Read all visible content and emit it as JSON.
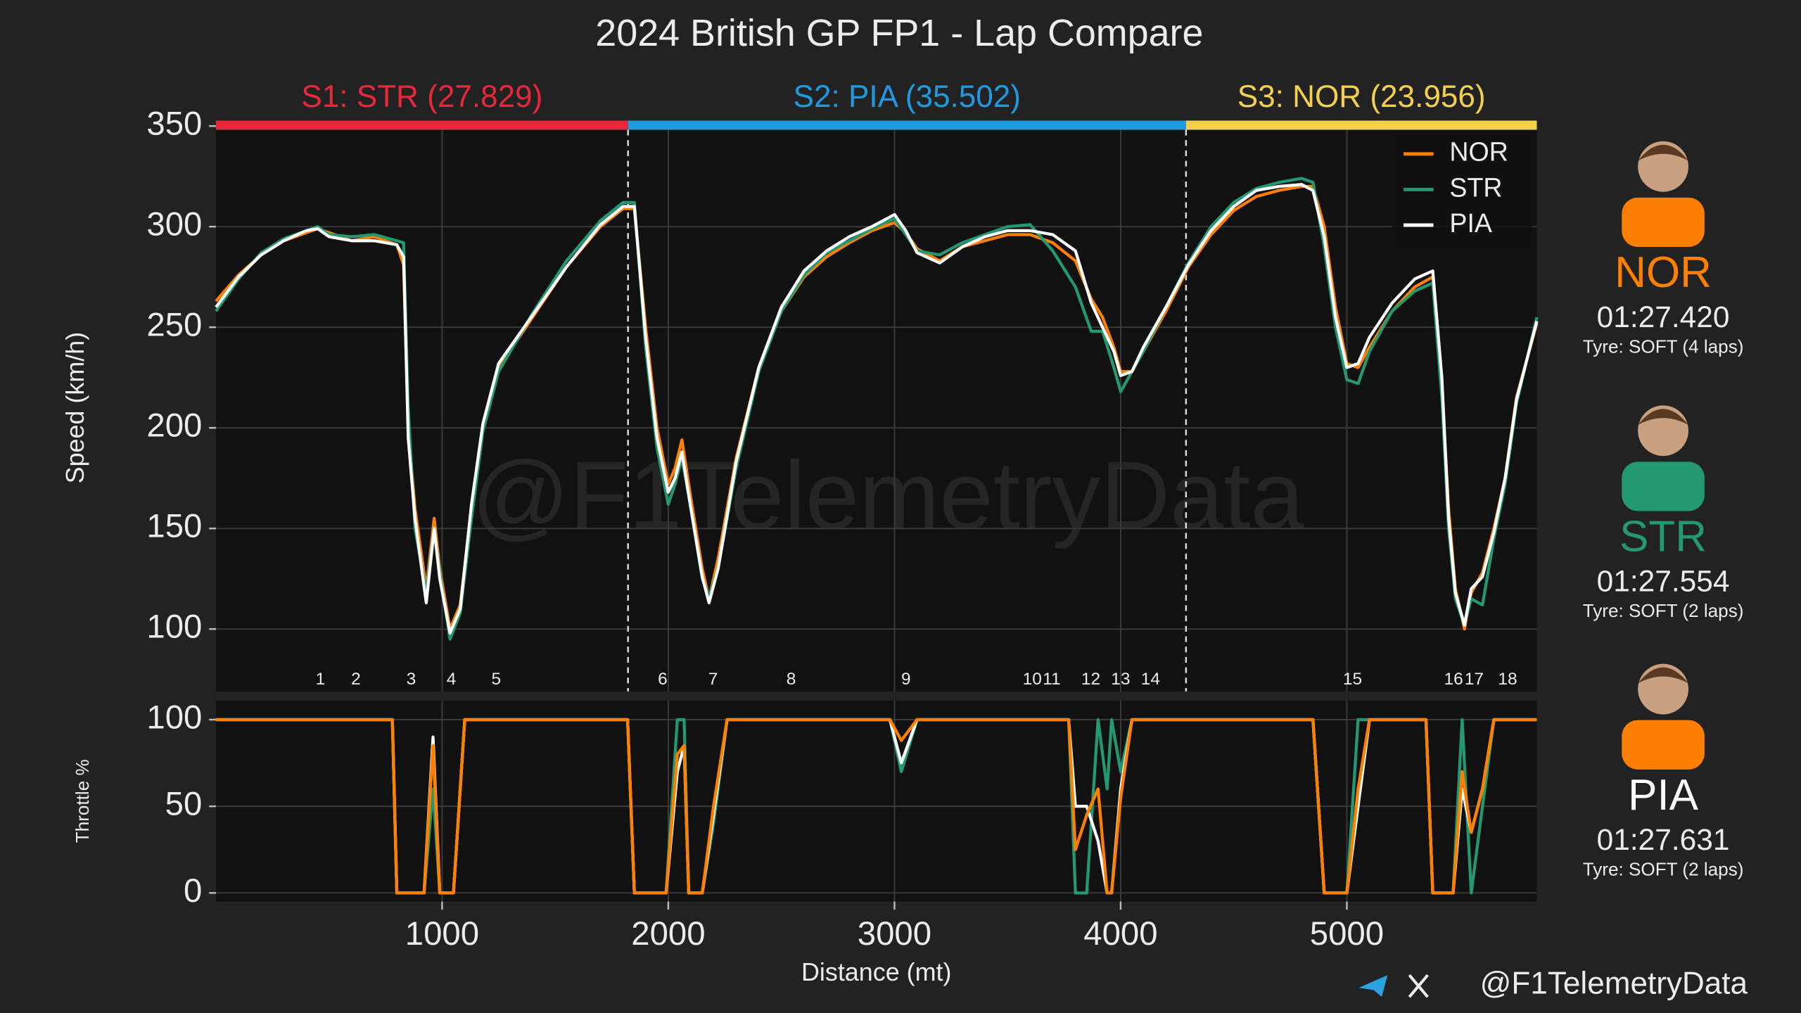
{
  "title": "2024 British GP FP1 - Lap Compare",
  "chart_data": [
    {
      "type": "line",
      "y_label": "Speed (km/h)",
      "xlim": [
        0,
        5840
      ],
      "ylim": [
        69,
        351
      ],
      "yticks": [
        100,
        150,
        200,
        250,
        300,
        350
      ],
      "xticks": [
        1000,
        2000,
        3000,
        4000,
        5000
      ],
      "grid": true,
      "legend": "upper right",
      "watermark": "@F1TelemetryData",
      "x": [
        0,
        100,
        200,
        300,
        400,
        450,
        500,
        600,
        700,
        800,
        830,
        850,
        880,
        930,
        965,
        990,
        1035,
        1080,
        1130,
        1180,
        1250,
        1400,
        1550,
        1700,
        1800,
        1850,
        1900,
        1950,
        2000,
        2030,
        2060,
        2100,
        2150,
        2180,
        2220,
        2300,
        2400,
        2500,
        2600,
        2700,
        2800,
        2900,
        3000,
        3050,
        3100,
        3200,
        3300,
        3400,
        3500,
        3600,
        3700,
        3800,
        3870,
        3920,
        3970,
        4000,
        4050,
        4100,
        4200,
        4300,
        4400,
        4500,
        4600,
        4700,
        4800,
        4850,
        4900,
        4950,
        5000,
        5050,
        5100,
        5200,
        5300,
        5380,
        5420,
        5450,
        5480,
        5520,
        5550,
        5600,
        5650,
        5700,
        5750,
        5840
      ],
      "series": [
        {
          "name": "NOR",
          "color": "#ff8000",
          "values": [
            263,
            276,
            286,
            293,
            297,
            299,
            297,
            293,
            295,
            291,
            281,
            200,
            160,
            120,
            155,
            130,
            100,
            112,
            160,
            200,
            230,
            255,
            280,
            300,
            309,
            309,
            250,
            200,
            172,
            180,
            194,
            165,
            130,
            115,
            135,
            185,
            230,
            258,
            275,
            285,
            292,
            298,
            302,
            297,
            289,
            283,
            290,
            293,
            296,
            296,
            292,
            283,
            264,
            255,
            240,
            228,
            228,
            238,
            258,
            280,
            296,
            308,
            315,
            318,
            320,
            320,
            300,
            260,
            232,
            230,
            240,
            258,
            270,
            275,
            220,
            160,
            120,
            100,
            118,
            128,
            150,
            175,
            215,
            252
          ]
        },
        {
          "name": "STR",
          "color": "#229971",
          "values": [
            258,
            274,
            287,
            294,
            298,
            300,
            296,
            295,
            296,
            293,
            292,
            210,
            150,
            118,
            150,
            128,
            95,
            108,
            155,
            198,
            228,
            257,
            283,
            303,
            312,
            312,
            240,
            190,
            162,
            172,
            185,
            160,
            125,
            116,
            130,
            180,
            228,
            258,
            276,
            287,
            293,
            299,
            304,
            296,
            288,
            286,
            292,
            296,
            300,
            301,
            288,
            270,
            248,
            248,
            230,
            218,
            228,
            238,
            260,
            282,
            300,
            312,
            319,
            322,
            324,
            322,
            290,
            250,
            224,
            222,
            238,
            258,
            268,
            272,
            215,
            150,
            115,
            102,
            115,
            112,
            145,
            172,
            212,
            255
          ]
        },
        {
          "name": "PIA",
          "color": "#ffffff",
          "values": [
            260,
            275,
            286,
            293,
            298,
            299,
            295,
            293,
            293,
            291,
            285,
            195,
            155,
            113,
            150,
            125,
            98,
            110,
            162,
            202,
            232,
            256,
            280,
            301,
            310,
            310,
            245,
            195,
            168,
            175,
            188,
            160,
            126,
            113,
            130,
            183,
            230,
            260,
            278,
            288,
            295,
            300,
            306,
            298,
            287,
            282,
            290,
            295,
            298,
            298,
            296,
            288,
            262,
            250,
            238,
            226,
            228,
            240,
            260,
            281,
            298,
            310,
            318,
            320,
            321,
            318,
            295,
            255,
            230,
            232,
            245,
            262,
            274,
            278,
            225,
            155,
            118,
            102,
            120,
            126,
            148,
            175,
            214,
            253
          ]
        }
      ],
      "sectors": [
        {
          "label": "S1: STR (27.829)",
          "start": 0,
          "end": 1822,
          "color": "#e8283a"
        },
        {
          "label": "S2: PIA (35.502)",
          "start": 1822,
          "end": 4289,
          "color": "#1e9be0"
        },
        {
          "label": "S3: NOR (23.956)",
          "start": 4289,
          "end": 5840,
          "color": "#f5d04a"
        }
      ],
      "corners": [
        {
          "label": "1",
          "x": 462
        },
        {
          "label": "2",
          "x": 619
        },
        {
          "label": "3",
          "x": 863
        },
        {
          "label": "4",
          "x": 1041
        },
        {
          "label": "5",
          "x": 1239
        },
        {
          "label": "6",
          "x": 1975
        },
        {
          "label": "7",
          "x": 2198
        },
        {
          "label": "8",
          "x": 2543
        },
        {
          "label": "9",
          "x": 3051
        },
        {
          "label": "10",
          "x": 3609
        },
        {
          "label": "11",
          "x": 3695
        },
        {
          "label": "12",
          "x": 3868
        },
        {
          "label": "13",
          "x": 4000
        },
        {
          "label": "14",
          "x": 4132
        },
        {
          "label": "15",
          "x": 5025
        },
        {
          "label": "16",
          "x": 5472
        },
        {
          "label": "17",
          "x": 5563
        },
        {
          "label": "18",
          "x": 5711
        }
      ]
    },
    {
      "type": "line",
      "y_label": "Throttle %",
      "x_label": "Distance (mt)",
      "xlim": [
        0,
        5840
      ],
      "ylim": [
        -5,
        111
      ],
      "yticks": [
        0,
        50,
        100
      ],
      "xticks": [
        1000,
        2000,
        3000,
        4000,
        5000
      ],
      "grid": true,
      "x": [
        0,
        780,
        800,
        920,
        960,
        990,
        1050,
        1100,
        1820,
        1850,
        1990,
        2040,
        2070,
        2090,
        2150,
        2200,
        2260,
        2980,
        3030,
        3100,
        3770,
        3800,
        3850,
        3900,
        3940,
        3960,
        4000,
        4050,
        4850,
        4900,
        5000,
        5050,
        5100,
        5350,
        5380,
        5470,
        5510,
        5550,
        5600,
        5650,
        5840
      ],
      "series": [
        {
          "color": "#229971",
          "values": [
            100,
            100,
            0,
            0,
            60,
            0,
            0,
            100,
            100,
            0,
            0,
            100,
            100,
            0,
            0,
            40,
            100,
            100,
            70,
            100,
            100,
            0,
            0,
            100,
            60,
            100,
            70,
            100,
            100,
            0,
            0,
            100,
            100,
            100,
            0,
            0,
            100,
            0,
            50,
            100,
            100
          ]
        },
        {
          "color": "#ffffff",
          "values": [
            100,
            100,
            0,
            0,
            90,
            0,
            0,
            100,
            100,
            0,
            0,
            70,
            85,
            0,
            0,
            45,
            100,
            100,
            75,
            100,
            100,
            50,
            50,
            30,
            0,
            0,
            60,
            100,
            100,
            0,
            0,
            50,
            100,
            100,
            0,
            0,
            60,
            35,
            60,
            100,
            100
          ]
        },
        {
          "color": "#ff8000",
          "values": [
            100,
            100,
            0,
            0,
            85,
            0,
            0,
            100,
            100,
            0,
            0,
            80,
            85,
            0,
            0,
            50,
            100,
            100,
            88,
            100,
            100,
            25,
            45,
            60,
            0,
            0,
            55,
            100,
            100,
            0,
            0,
            60,
            100,
            100,
            0,
            0,
            70,
            35,
            60,
            100,
            100
          ]
        }
      ]
    }
  ],
  "drivers": [
    {
      "code": "NOR",
      "color": "#ff8000",
      "lap_time": "01:27.420",
      "tyre": "Tyre: SOFT (4 laps)"
    },
    {
      "code": "STR",
      "color": "#229971",
      "lap_time": "01:27.554",
      "tyre": "Tyre: SOFT (2 laps)"
    },
    {
      "code": "PIA",
      "color": "#ffffff",
      "lap_time": "01:27.631",
      "tyre": "Tyre: SOFT (2 laps)"
    }
  ],
  "footer": "@F1TelemetryData"
}
